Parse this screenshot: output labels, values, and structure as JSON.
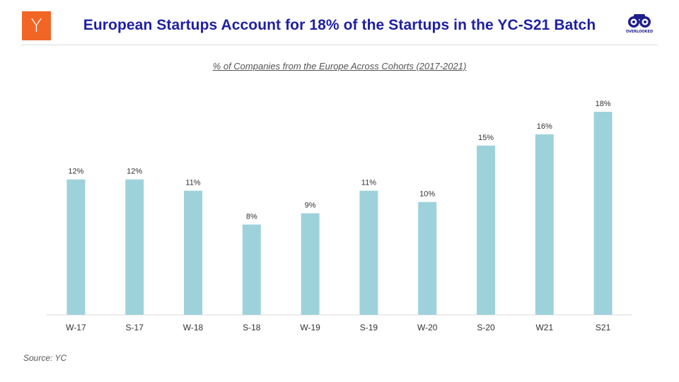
{
  "header": {
    "logo_letter": "Y",
    "title": "European Startups Account for 18% of the Startups in the YC-S21 Batch",
    "brand_text": "OVERLOOKED",
    "brand_icon": "binoculars-icon"
  },
  "colors": {
    "bar": "#9ed2db",
    "title": "#1f1fa3",
    "logo": "#f26625"
  },
  "chart_data": {
    "type": "bar",
    "title": "% of Companies from the Europe Across Cohorts (2017-2021)",
    "xlabel": "",
    "ylabel": "",
    "categories": [
      "W-17",
      "S-17",
      "W-18",
      "S-18",
      "W-19",
      "S-19",
      "W-20",
      "S-20",
      "W21",
      "S21"
    ],
    "values": [
      12,
      12,
      11,
      8,
      9,
      11,
      10,
      15,
      16,
      18
    ],
    "value_labels": [
      "12%",
      "12%",
      "11%",
      "8%",
      "9%",
      "11%",
      "10%",
      "15%",
      "16%",
      "18%"
    ],
    "ylim": [
      0,
      18
    ],
    "grid": false,
    "legend": "none"
  },
  "footer": {
    "source": "Source: YC"
  }
}
